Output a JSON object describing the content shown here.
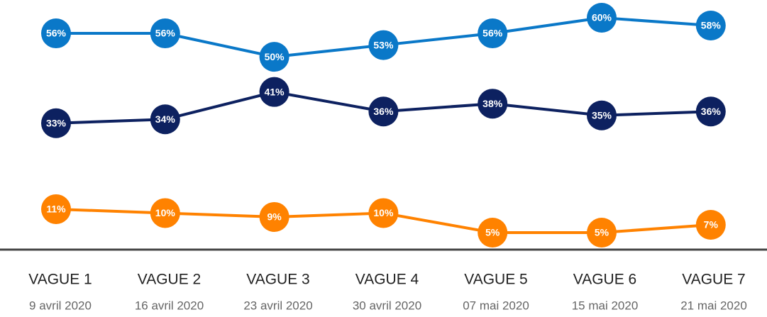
{
  "chart_data": {
    "type": "line",
    "categories": [
      "VAGUE 1",
      "VAGUE 2",
      "VAGUE 3",
      "VAGUE 4",
      "VAGUE 5",
      "VAGUE 6",
      "VAGUE 7"
    ],
    "dates": [
      "9 avril 2020",
      "16 avril 2020",
      "23 avril 2020",
      "30 avril 2020",
      "07 mai 2020",
      "15 mai 2020",
      "21 mai 2020"
    ],
    "series": [
      {
        "color": "#0a78c8",
        "values": [
          56,
          56,
          50,
          53,
          56,
          60,
          58
        ],
        "value_labels": [
          "56%",
          "56%",
          "50%",
          "53%",
          "56%",
          "60%",
          "58%"
        ]
      },
      {
        "color": "#0d2160",
        "values": [
          33,
          34,
          41,
          36,
          38,
          35,
          36
        ],
        "value_labels": [
          "33%",
          "34%",
          "41%",
          "36%",
          "38%",
          "35%",
          "36%"
        ]
      },
      {
        "color": "#ff8200",
        "values": [
          11,
          10,
          9,
          10,
          5,
          5,
          7
        ],
        "value_labels": [
          "11%",
          "10%",
          "9%",
          "10%",
          "5%",
          "5%",
          "7%"
        ]
      }
    ]
  }
}
